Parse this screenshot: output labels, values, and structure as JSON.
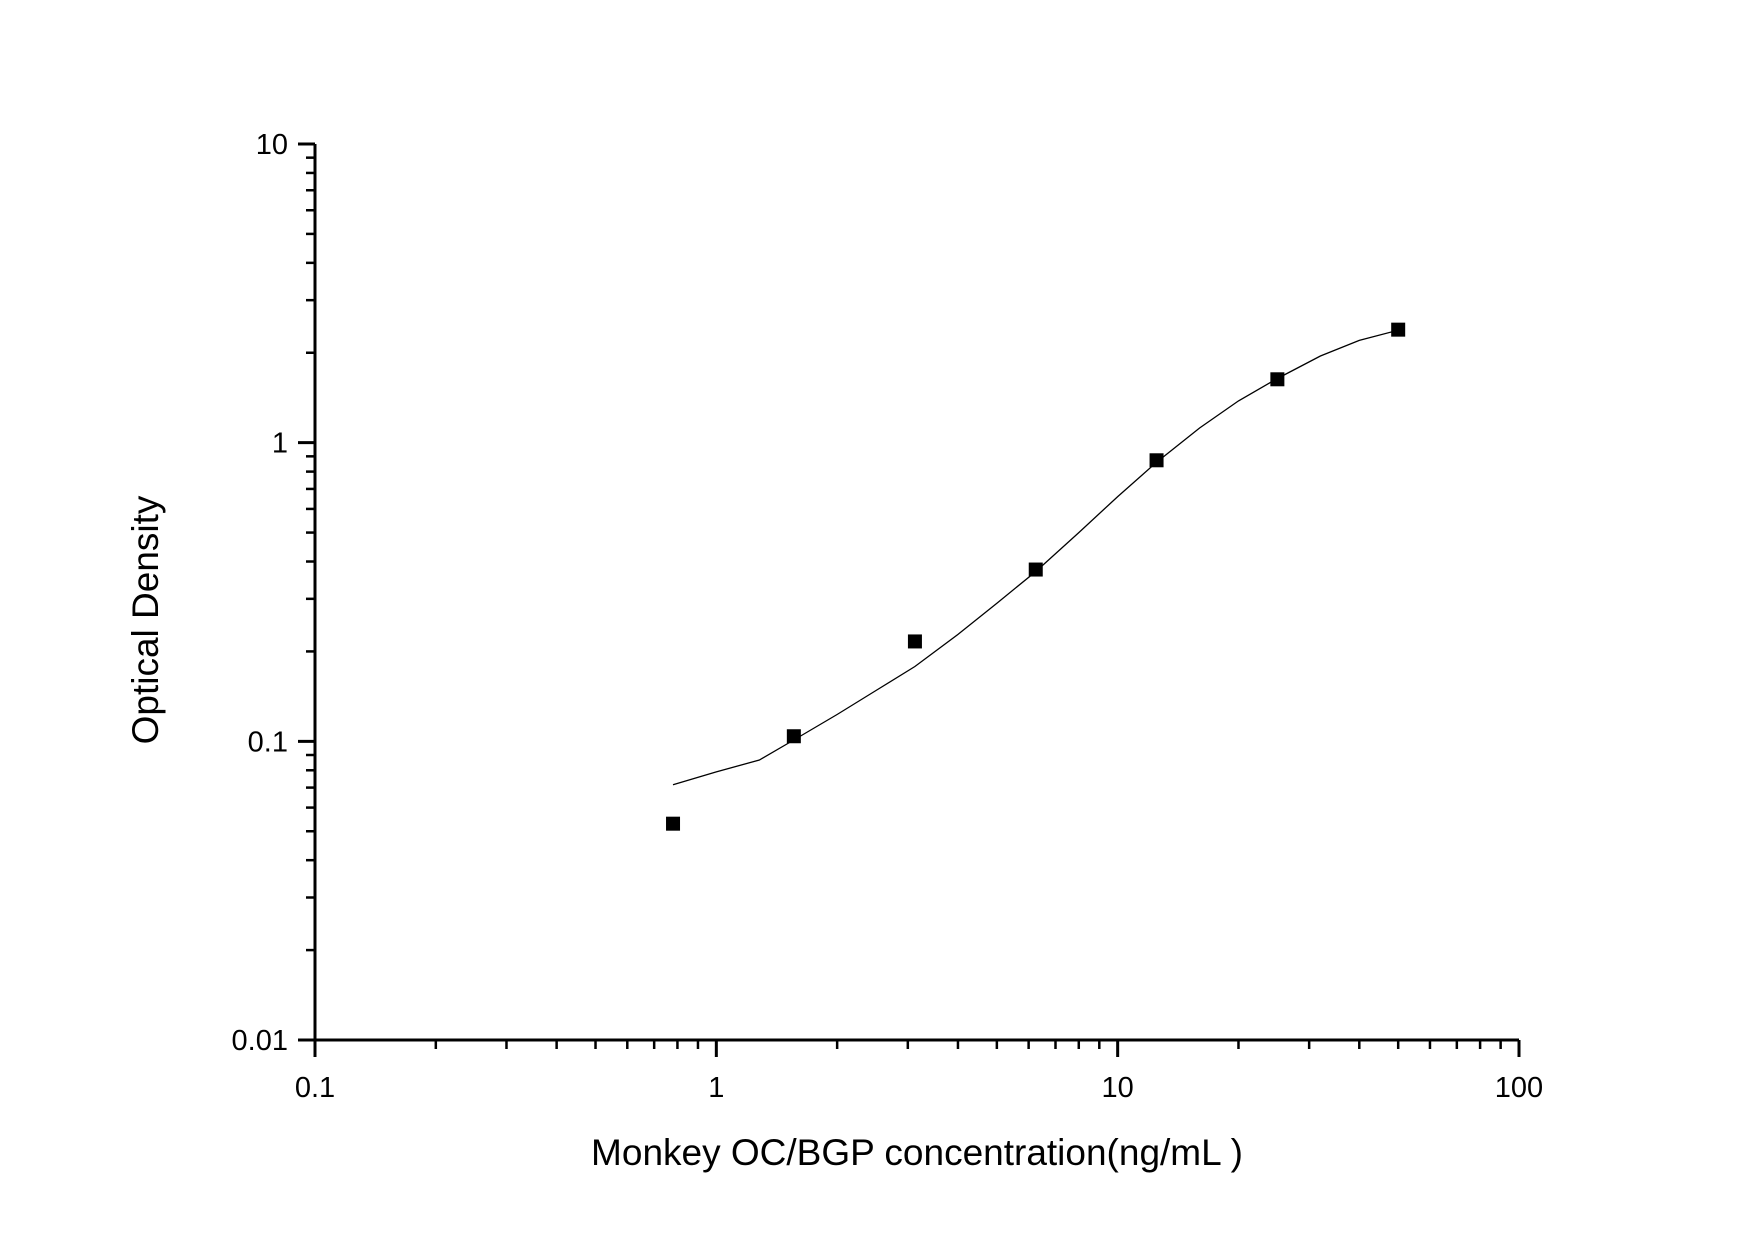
{
  "chart_data": {
    "type": "scatter",
    "title": "",
    "xlabel": "Monkey OC/BGP concentration(ng/mL )",
    "ylabel": "Optical Density",
    "x_scale": "log",
    "y_scale": "log",
    "xlim": [
      0.1,
      100
    ],
    "ylim": [
      0.01,
      10
    ],
    "x_ticks": [
      {
        "value": 0.1,
        "label": "0.1"
      },
      {
        "value": 1,
        "label": "1"
      },
      {
        "value": 10,
        "label": "10"
      },
      {
        "value": 100,
        "label": "100"
      }
    ],
    "y_ticks": [
      {
        "value": 0.01,
        "label": "0.01"
      },
      {
        "value": 0.1,
        "label": "0.1"
      },
      {
        "value": 1,
        "label": "1"
      },
      {
        "value": 10,
        "label": "10"
      }
    ],
    "grid": false,
    "legend": "none",
    "marker_color": "#000000",
    "series": [
      {
        "x": [
          0.78,
          1.56,
          3.125,
          6.25,
          12.5,
          25,
          50
        ],
        "y": [
          0.053,
          0.104,
          0.216,
          0.376,
          0.873,
          1.63,
          2.39
        ]
      }
    ],
    "fit_curve": {
      "x": [
        0.78,
        1.0,
        1.28,
        1.56,
        2.0,
        2.5,
        3.125,
        4.0,
        5.0,
        6.25,
        8.0,
        10.0,
        12.5,
        16.0,
        20.0,
        25.0,
        32.0,
        40.0,
        50.0
      ],
      "y": [
        0.0716,
        0.079,
        0.0866,
        0.101,
        0.123,
        0.148,
        0.178,
        0.228,
        0.29,
        0.37,
        0.5,
        0.66,
        0.86,
        1.12,
        1.38,
        1.64,
        1.95,
        2.2,
        2.38
      ]
    }
  }
}
